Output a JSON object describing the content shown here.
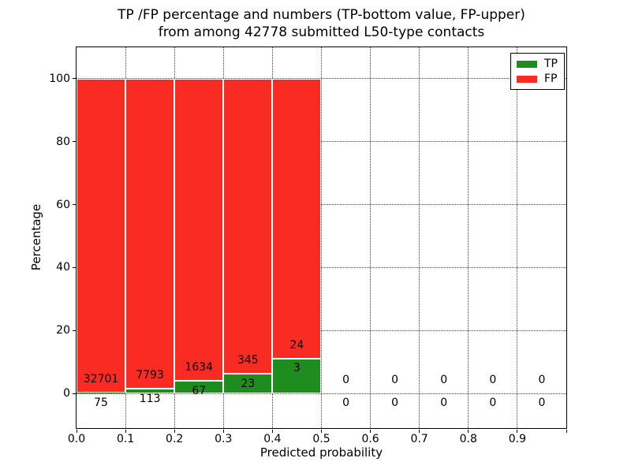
{
  "title": {
    "line1": "TP /FP percentage and numbers (TP-bottom value, FP-upper)",
    "line2": "from among 42778 submitted L50-type contacts"
  },
  "chart_data": {
    "type": "bar",
    "stacked": true,
    "title": "TP /FP percentage and numbers (TP-bottom value, FP-upper) from among 42778 submitted L50-type contacts",
    "xlabel": "Predicted probability",
    "ylabel": "Percentage",
    "xlim": [
      0.0,
      1.0
    ],
    "ylim": [
      -11,
      110
    ],
    "bin_edges": [
      0.0,
      0.1,
      0.2,
      0.3,
      0.4,
      0.5,
      0.6,
      0.7,
      0.8,
      0.9,
      1.0
    ],
    "x_tick_labels": [
      "0.0",
      "0.1",
      "0.2",
      "0.3",
      "0.4",
      "0.5",
      "0.6",
      "0.7",
      "0.8",
      "0.9"
    ],
    "y_ticks": [
      0,
      20,
      40,
      60,
      80,
      100
    ],
    "grid": {
      "style": "dotted",
      "color": "#444444",
      "on": true
    },
    "legend_position": "upper-right",
    "series": [
      {
        "name": "TP",
        "color": "#1e8c1e",
        "counts": [
          75,
          113,
          67,
          23,
          3,
          0,
          0,
          0,
          0,
          0
        ],
        "percent": [
          0.23,
          1.43,
          3.94,
          6.25,
          11.11,
          0,
          0,
          0,
          0,
          0
        ]
      },
      {
        "name": "FP",
        "color": "#f92b22",
        "counts": [
          32701,
          7793,
          1634,
          345,
          24,
          0,
          0,
          0,
          0,
          0
        ],
        "percent": [
          99.77,
          98.57,
          96.06,
          93.75,
          88.89,
          0,
          0,
          0,
          0,
          0
        ]
      }
    ]
  }
}
